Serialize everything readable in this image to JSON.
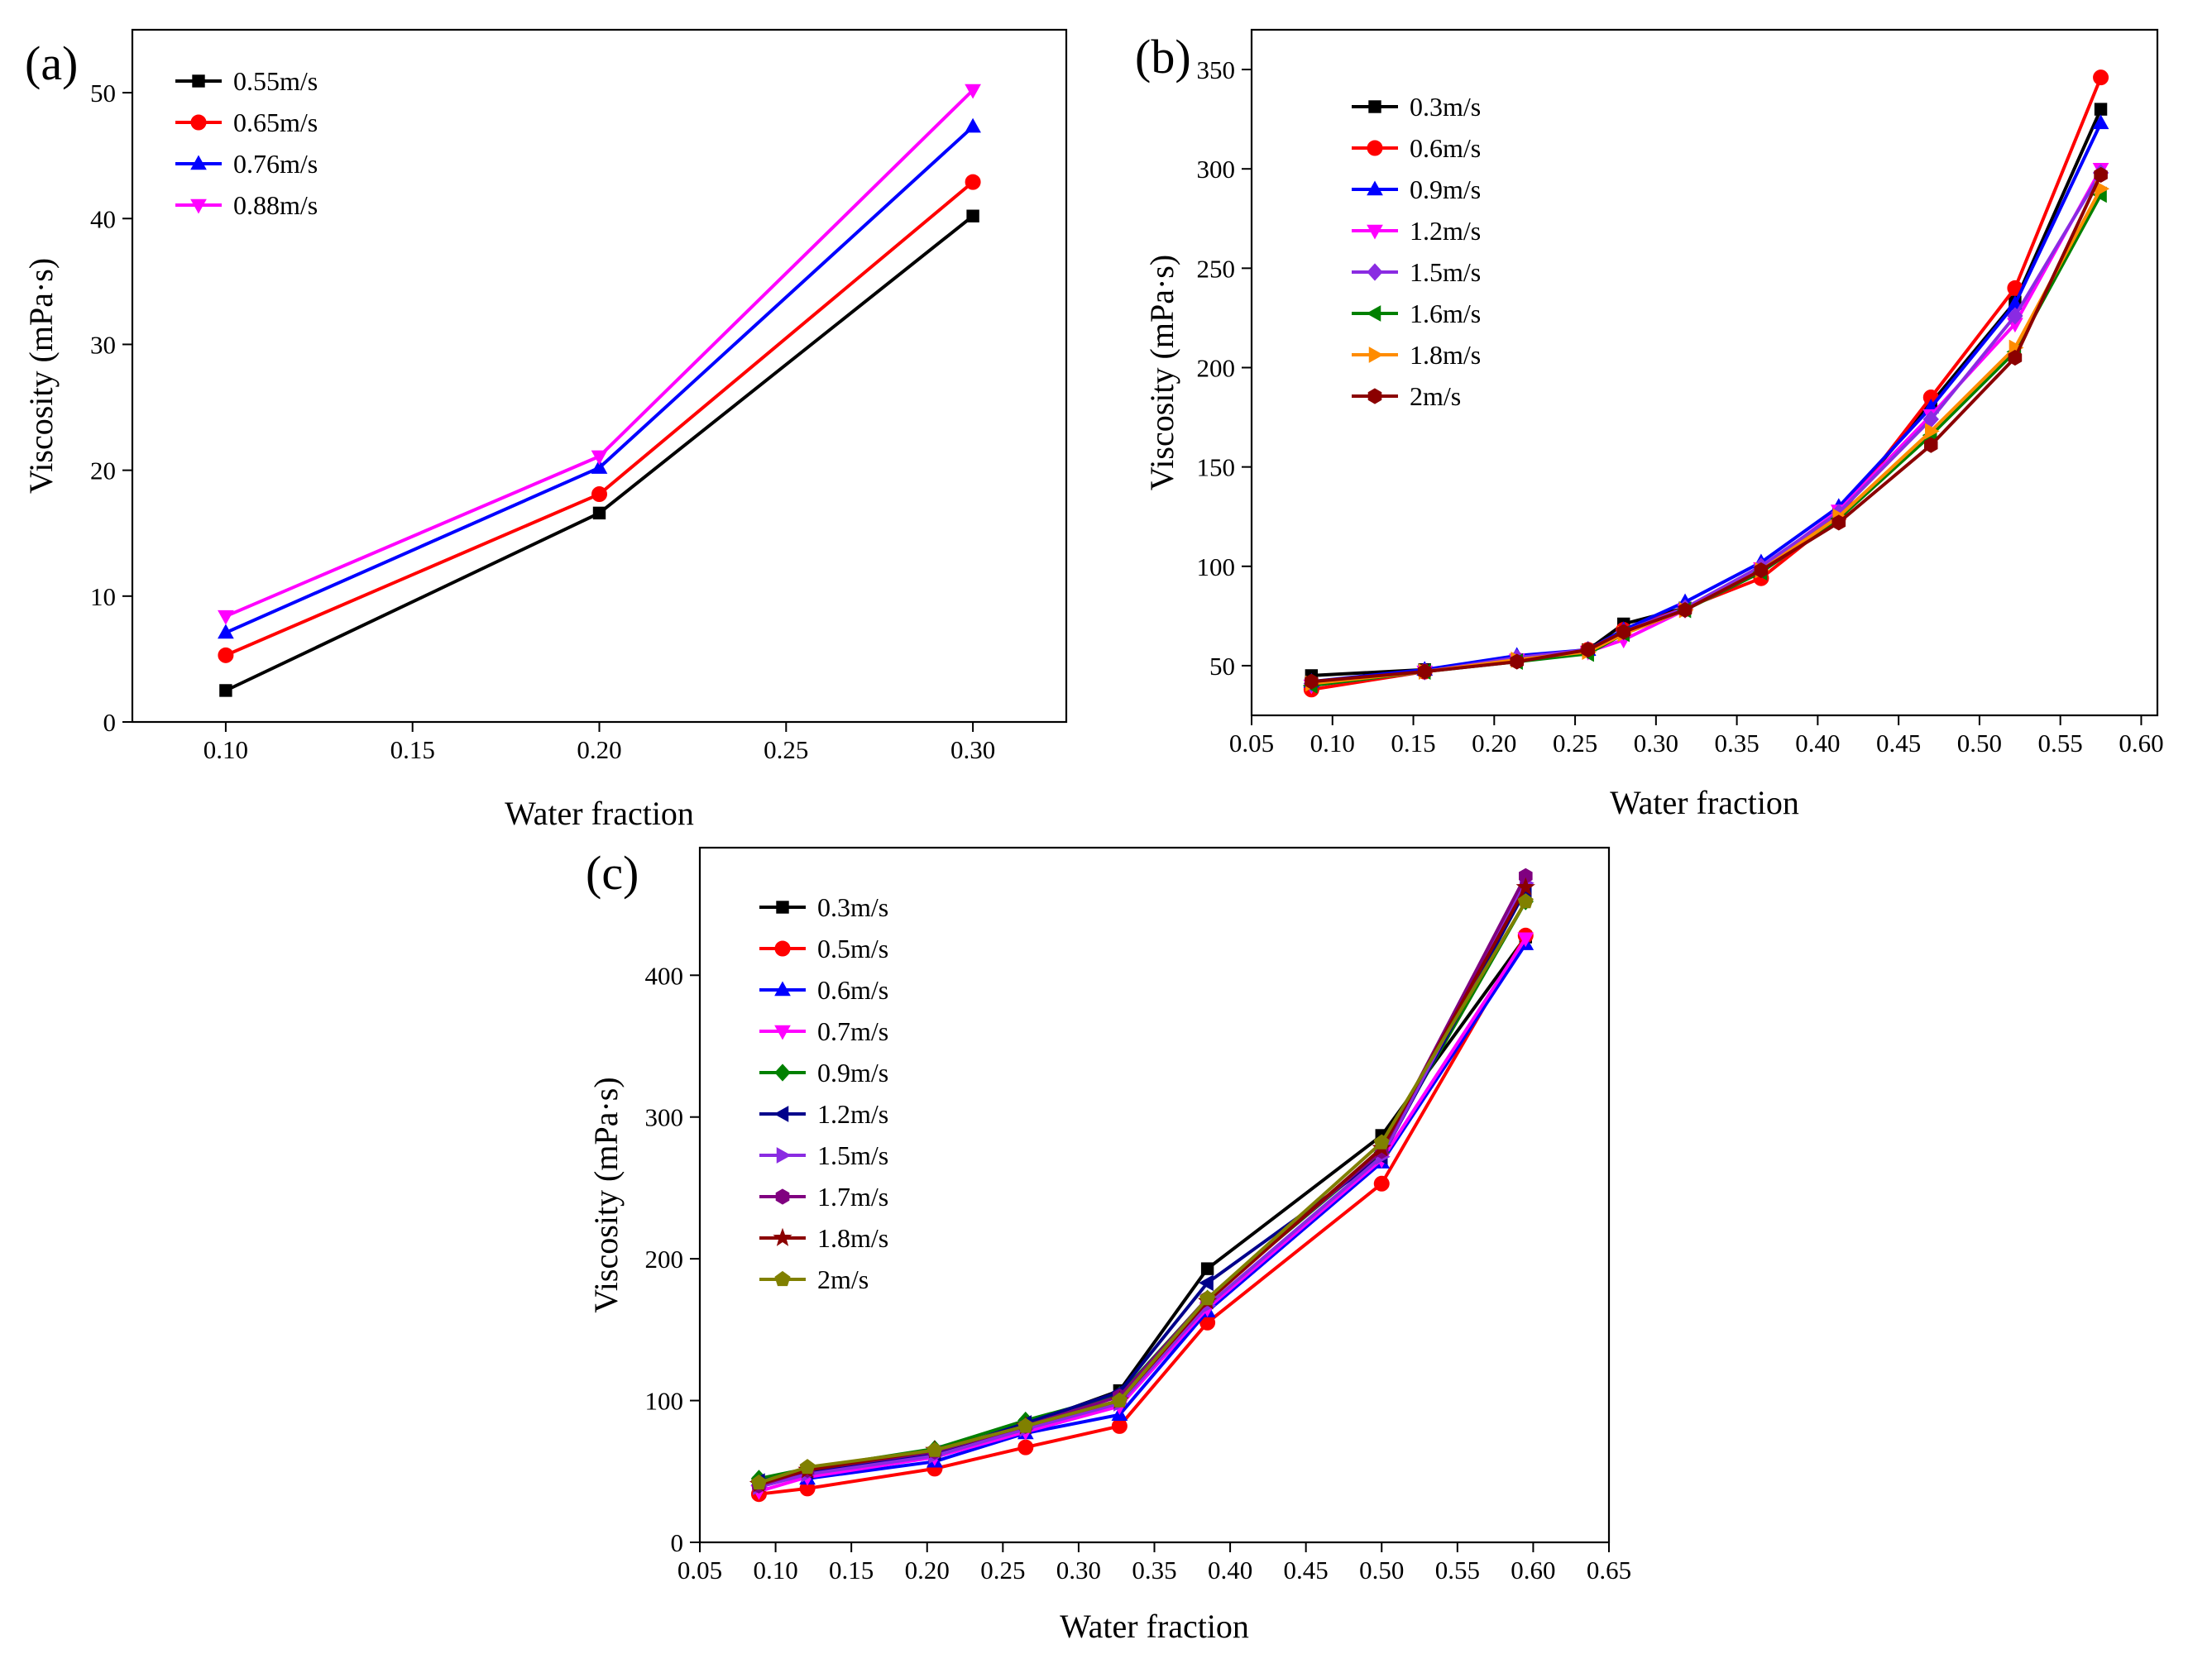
{
  "chart_data": [
    {
      "id": "a",
      "type": "line",
      "panel_label": "(a)",
      "xlabel": "Water fraction",
      "ylabel": "Viscosity (mPa·s)",
      "xlim": [
        0.075,
        0.325
      ],
      "ylim": [
        0,
        55
      ],
      "xticks": [
        0.1,
        0.15,
        0.2,
        0.25,
        0.3
      ],
      "xtick_labels": [
        "0.10",
        "0.15",
        "0.20",
        "0.25",
        "0.30"
      ],
      "yticks": [
        0,
        10,
        20,
        30,
        40,
        50
      ],
      "ytick_labels": [
        "0",
        "10",
        "20",
        "30",
        "40",
        "50"
      ],
      "legend_position": "top-left",
      "series": [
        {
          "name": "0.55m/s",
          "color": "#000000",
          "marker": "square",
          "x": [
            0.1,
            0.2,
            0.3
          ],
          "values": [
            2.5,
            16.6,
            40.2
          ]
        },
        {
          "name": "0.65m/s",
          "color": "#ff0000",
          "marker": "circle",
          "x": [
            0.1,
            0.2,
            0.3
          ],
          "values": [
            5.3,
            18.1,
            42.9
          ]
        },
        {
          "name": "0.76m/s",
          "color": "#0000ff",
          "marker": "triangle-up",
          "x": [
            0.1,
            0.2,
            0.3
          ],
          "values": [
            7.1,
            20.2,
            47.3
          ]
        },
        {
          "name": "0.88m/s",
          "color": "#ff00ff",
          "marker": "triangle-down",
          "x": [
            0.1,
            0.2,
            0.3
          ],
          "values": [
            8.4,
            21.1,
            50.2
          ]
        }
      ]
    },
    {
      "id": "b",
      "type": "line",
      "panel_label": "(b)",
      "xlabel": "Water fraction",
      "ylabel": "Viscosity (mPa·s)",
      "xlim": [
        0.05,
        0.61
      ],
      "ylim": [
        25,
        370
      ],
      "xticks": [
        0.05,
        0.1,
        0.15,
        0.2,
        0.25,
        0.3,
        0.35,
        0.4,
        0.45,
        0.5,
        0.55,
        0.6
      ],
      "xtick_labels": [
        "0.05",
        "0.10",
        "0.15",
        "0.20",
        "0.25",
        "0.30",
        "0.35",
        "0.40",
        "0.45",
        "0.50",
        "0.55",
        "0.60"
      ],
      "yticks": [
        50,
        100,
        150,
        200,
        250,
        300,
        350
      ],
      "ytick_labels": [
        "50",
        "100",
        "150",
        "200",
        "250",
        "300",
        "350"
      ],
      "legend_position": "top-left",
      "series": [
        {
          "name": "0.3m/s",
          "color": "#000000",
          "marker": "square",
          "x": [
            0.087,
            0.157,
            0.214,
            0.258,
            0.28,
            0.318,
            0.365,
            0.413,
            0.47,
            0.522,
            0.575
          ],
          "values": [
            45,
            48,
            53,
            58,
            71,
            79,
            97,
            127,
            182,
            233,
            330
          ]
        },
        {
          "name": "0.6m/s",
          "color": "#ff0000",
          "marker": "circle",
          "x": [
            0.087,
            0.157,
            0.214,
            0.258,
            0.28,
            0.318,
            0.365,
            0.413,
            0.47,
            0.522,
            0.575
          ],
          "values": [
            38,
            47,
            53,
            58,
            68,
            79,
            94,
            125,
            185,
            240,
            346
          ]
        },
        {
          "name": "0.9m/s",
          "color": "#0000ff",
          "marker": "triangle-up",
          "x": [
            0.087,
            0.157,
            0.214,
            0.258,
            0.28,
            0.318,
            0.365,
            0.413,
            0.47,
            0.522,
            0.575
          ],
          "values": [
            42,
            48,
            55,
            58,
            68,
            82,
            102,
            130,
            180,
            232,
            323
          ]
        },
        {
          "name": "1.2m/s",
          "color": "#ff00ff",
          "marker": "triangle-down",
          "x": [
            0.087,
            0.157,
            0.214,
            0.258,
            0.28,
            0.318,
            0.365,
            0.413,
            0.47,
            0.522,
            0.575
          ],
          "values": [
            40,
            47,
            53,
            57,
            63,
            78,
            99,
            128,
            176,
            222,
            300
          ]
        },
        {
          "name": "1.5m/s",
          "color": "#8a2be2",
          "marker": "diamond",
          "x": [
            0.087,
            0.157,
            0.214,
            0.258,
            0.28,
            0.318,
            0.365,
            0.413,
            0.47,
            0.522,
            0.575
          ],
          "values": [
            41,
            47,
            54,
            58,
            67,
            79,
            100,
            127,
            174,
            226,
            298
          ]
        },
        {
          "name": "1.6m/s",
          "color": "#008000",
          "marker": "triangle-left",
          "x": [
            0.087,
            0.157,
            0.214,
            0.258,
            0.28,
            0.318,
            0.365,
            0.413,
            0.47,
            0.522,
            0.575
          ],
          "values": [
            40,
            47,
            52,
            56,
            66,
            78,
            97,
            124,
            166,
            208,
            287
          ]
        },
        {
          "name": "1.8m/s",
          "color": "#ff8c00",
          "marker": "triangle-right",
          "x": [
            0.087,
            0.157,
            0.214,
            0.258,
            0.28,
            0.318,
            0.365,
            0.413,
            0.47,
            0.522,
            0.575
          ],
          "values": [
            41,
            47,
            53,
            57,
            66,
            78,
            98,
            125,
            168,
            210,
            290
          ]
        },
        {
          "name": "2m/s",
          "color": "#8b0000",
          "marker": "hexagon",
          "x": [
            0.087,
            0.157,
            0.214,
            0.258,
            0.28,
            0.318,
            0.365,
            0.413,
            0.47,
            0.522,
            0.575
          ],
          "values": [
            42,
            47,
            52,
            58,
            67,
            78,
            98,
            122,
            161,
            205,
            297
          ]
        }
      ]
    },
    {
      "id": "c",
      "type": "line",
      "panel_label": "(c)",
      "xlabel": "Water fraction",
      "ylabel": "Viscosity (mPa·s)",
      "xlim": [
        0.05,
        0.65
      ],
      "ylim": [
        0,
        490
      ],
      "xticks": [
        0.05,
        0.1,
        0.15,
        0.2,
        0.25,
        0.3,
        0.35,
        0.4,
        0.45,
        0.5,
        0.55,
        0.6,
        0.65
      ],
      "xtick_labels": [
        "0.05",
        "0.10",
        "0.15",
        "0.20",
        "0.25",
        "0.30",
        "0.35",
        "0.40",
        "0.45",
        "0.50",
        "0.55",
        "0.60",
        "0.65"
      ],
      "yticks": [
        0,
        100,
        200,
        300,
        400
      ],
      "ytick_labels": [
        "0",
        "100",
        "200",
        "300",
        "400"
      ],
      "legend_position": "top-left",
      "series": [
        {
          "name": "0.3m/s",
          "color": "#000000",
          "marker": "square",
          "x": [
            0.089,
            0.121,
            0.205,
            0.265,
            0.327,
            0.385,
            0.5,
            0.595
          ],
          "values": [
            42,
            50,
            62,
            83,
            107,
            193,
            287,
            427
          ]
        },
        {
          "name": "0.5m/s",
          "color": "#ff0000",
          "marker": "circle",
          "x": [
            0.089,
            0.121,
            0.205,
            0.265,
            0.327,
            0.385,
            0.5,
            0.595
          ],
          "values": [
            34,
            38,
            52,
            67,
            82,
            155,
            253,
            428
          ]
        },
        {
          "name": "0.6m/s",
          "color": "#0000ff",
          "marker": "triangle-up",
          "x": [
            0.089,
            0.121,
            0.205,
            0.265,
            0.327,
            0.385,
            0.5,
            0.595
          ],
          "values": [
            44,
            45,
            57,
            77,
            90,
            163,
            268,
            422
          ]
        },
        {
          "name": "0.7m/s",
          "color": "#ff00ff",
          "marker": "triangle-down",
          "x": [
            0.089,
            0.121,
            0.205,
            0.265,
            0.327,
            0.385,
            0.5,
            0.595
          ],
          "values": [
            36,
            46,
            60,
            78,
            96,
            165,
            270,
            426
          ]
        },
        {
          "name": "0.9m/s",
          "color": "#008000",
          "marker": "diamond",
          "x": [
            0.089,
            0.121,
            0.205,
            0.265,
            0.327,
            0.385,
            0.5,
            0.595
          ],
          "values": [
            45,
            52,
            66,
            86,
            104,
            172,
            275,
            452
          ]
        },
        {
          "name": "1.2m/s",
          "color": "#00008b",
          "marker": "triangle-left",
          "x": [
            0.089,
            0.121,
            0.205,
            0.265,
            0.327,
            0.385,
            0.5,
            0.595
          ],
          "values": [
            43,
            50,
            63,
            84,
            106,
            183,
            272,
            460
          ]
        },
        {
          "name": "1.5m/s",
          "color": "#8a2be2",
          "marker": "triangle-right",
          "x": [
            0.089,
            0.121,
            0.205,
            0.265,
            0.327,
            0.385,
            0.5,
            0.595
          ],
          "values": [
            39,
            48,
            61,
            80,
            98,
            167,
            272,
            465
          ]
        },
        {
          "name": "1.7m/s",
          "color": "#800080",
          "marker": "hexagon",
          "x": [
            0.089,
            0.121,
            0.205,
            0.265,
            0.327,
            0.385,
            0.5,
            0.595
          ],
          "values": [
            40,
            51,
            64,
            82,
            103,
            172,
            276,
            470
          ]
        },
        {
          "name": "1.8m/s",
          "color": "#8b0000",
          "marker": "star",
          "x": [
            0.089,
            0.121,
            0.205,
            0.265,
            0.327,
            0.385,
            0.5,
            0.595
          ],
          "values": [
            41,
            51,
            65,
            82,
            100,
            170,
            278,
            462
          ]
        },
        {
          "name": "2m/s",
          "color": "#808000",
          "marker": "pentagon",
          "x": [
            0.089,
            0.121,
            0.205,
            0.265,
            0.327,
            0.385,
            0.5,
            0.595
          ],
          "values": [
            42,
            53,
            65,
            82,
            100,
            172,
            282,
            452
          ]
        }
      ]
    }
  ]
}
